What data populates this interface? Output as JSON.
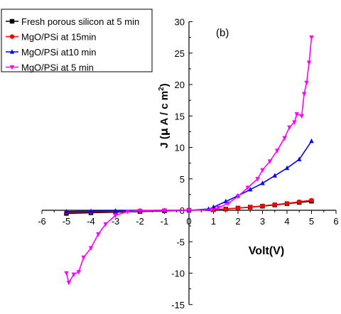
{
  "chart_data": {
    "type": "line",
    "panel_label": "(b)",
    "xlabel": "Volt(V)",
    "ylabel_parts": {
      "pre": "J (",
      "mu": "µ",
      "mid": " A / c m",
      "sup": "2",
      "post": ")"
    },
    "xlim": [
      -6,
      6
    ],
    "ylim": [
      -15,
      30
    ],
    "xticks": [
      "-6",
      "-5",
      "-4",
      "-3",
      "-2",
      "-1",
      "0",
      "1",
      "2",
      "3",
      "4",
      "5",
      "6"
    ],
    "yticks": [
      "-15",
      "-10",
      "-5",
      "0",
      "5",
      "10",
      "15",
      "20",
      "25",
      "30"
    ],
    "legend_position": "top-left",
    "series": [
      {
        "name": "Fresh porous silicon at 5 min",
        "color": "#000000",
        "marker": "square",
        "points": [
          [
            -5,
            -0.5
          ],
          [
            -4,
            -0.4
          ],
          [
            -3,
            -0.3
          ],
          [
            -2,
            -0.2
          ],
          [
            -1,
            -0.1
          ],
          [
            0,
            0
          ],
          [
            1,
            0.1
          ],
          [
            1.5,
            0.2
          ],
          [
            2,
            0.35
          ],
          [
            2.5,
            0.5
          ],
          [
            3,
            0.65
          ],
          [
            3.5,
            0.85
          ],
          [
            4,
            1.05
          ],
          [
            4.5,
            1.25
          ],
          [
            5,
            1.45
          ]
        ]
      },
      {
        "name": "MgO/PSi at 15min",
        "color": "#ff0000",
        "marker": "circle",
        "points": [
          [
            -5,
            -0.3
          ],
          [
            -4,
            -0.25
          ],
          [
            -3,
            -0.2
          ],
          [
            -2,
            -0.15
          ],
          [
            -1,
            -0.05
          ],
          [
            0,
            0
          ],
          [
            1,
            0.1
          ],
          [
            1.5,
            0.2
          ],
          [
            2,
            0.35
          ],
          [
            2.5,
            0.5
          ],
          [
            3,
            0.7
          ],
          [
            3.5,
            0.9
          ],
          [
            4,
            1.1
          ],
          [
            4.5,
            1.35
          ],
          [
            5,
            1.6
          ]
        ]
      },
      {
        "name": "MgO/PSi at10 min",
        "color": "#0000ff",
        "marker": "triangle",
        "points": [
          [
            -5,
            -0.2
          ],
          [
            -4,
            -0.15
          ],
          [
            -3,
            -0.1
          ],
          [
            -2,
            -0.05
          ],
          [
            -1,
            0
          ],
          [
            0,
            0
          ],
          [
            0.8,
            0.2
          ],
          [
            1,
            0.5
          ],
          [
            1.5,
            1.4
          ],
          [
            2,
            2.3
          ],
          [
            2.5,
            3.3
          ],
          [
            3,
            4.3
          ],
          [
            3.5,
            5.5
          ],
          [
            4,
            6.7
          ],
          [
            4.5,
            8.1
          ],
          [
            5,
            11.0
          ]
        ]
      },
      {
        "name": "MgO/PSi at 5 min",
        "color": "#ff00ff",
        "marker": "triangle-down",
        "points": [
          [
            -5,
            -10
          ],
          [
            -4.9,
            -11.5
          ],
          [
            -4.7,
            -10.2
          ],
          [
            -4.5,
            -9.8
          ],
          [
            -4.3,
            -7.5
          ],
          [
            -4.0,
            -6.0
          ],
          [
            -3.7,
            -3.8
          ],
          [
            -3.4,
            -2.2
          ],
          [
            -3.0,
            -0.8
          ],
          [
            -2.5,
            -0.2
          ],
          [
            -2,
            -0.05
          ],
          [
            -1,
            0
          ],
          [
            0,
            0
          ],
          [
            0.9,
            0.1
          ],
          [
            1.2,
            0.4
          ],
          [
            1.6,
            1.1
          ],
          [
            2,
            2.2
          ],
          [
            2.4,
            3.6
          ],
          [
            2.8,
            5.0
          ],
          [
            3.0,
            6.4
          ],
          [
            3.3,
            7.8
          ],
          [
            3.6,
            9.5
          ],
          [
            3.9,
            11.5
          ],
          [
            4.1,
            13.2
          ],
          [
            4.3,
            14.0
          ],
          [
            4.4,
            15.3
          ],
          [
            4.6,
            15.0
          ],
          [
            4.7,
            18.5
          ],
          [
            4.8,
            20.3
          ],
          [
            4.9,
            23.5
          ],
          [
            5,
            27.5
          ]
        ]
      }
    ]
  }
}
